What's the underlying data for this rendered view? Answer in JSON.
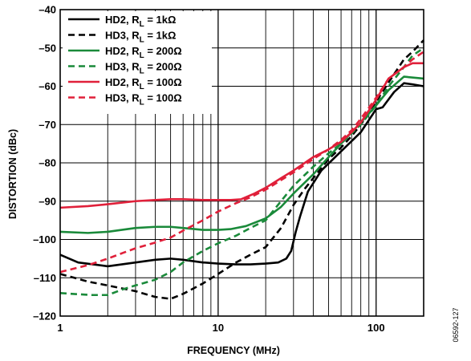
{
  "chart_data": {
    "type": "line",
    "title": "",
    "xlabel": "FREQUENCY (MHz)",
    "ylabel": "DISTORTION (dBc)",
    "x_scale": "log",
    "xlim": [
      1,
      200
    ],
    "ylim": [
      -120,
      -40
    ],
    "x_tick_labels": [
      {
        "value": 1,
        "label": "1"
      },
      {
        "value": 10,
        "label": "10"
      },
      {
        "value": 100,
        "label": "100"
      }
    ],
    "y_ticks": [
      -40,
      -50,
      -60,
      -70,
      -80,
      -90,
      -100,
      -110,
      -120
    ],
    "y_tick_labels": [
      "–40",
      "–50",
      "–60",
      "–70",
      "–80",
      "–90",
      "–100",
      "–110",
      "–120"
    ],
    "grid": true,
    "legend_position": "top-left",
    "figure_id": "06592-127",
    "series": [
      {
        "name_main": "HD2, R",
        "name_sub": "L",
        "name_rest": " = 1kΩ",
        "color": "#000000",
        "dash": false,
        "x": [
          1,
          1.3,
          2,
          3,
          4,
          5,
          6,
          8,
          10,
          13,
          16,
          20,
          24,
          27,
          29,
          31,
          33,
          37,
          45,
          60,
          80,
          100,
          110,
          130,
          150,
          170,
          200
        ],
        "y": [
          -104,
          -106,
          -107,
          -106,
          -105.3,
          -105,
          -105.3,
          -106,
          -106.3,
          -106.5,
          -106.5,
          -106.3,
          -106,
          -105,
          -103,
          -98,
          -94,
          -87.5,
          -82,
          -77,
          -72,
          -66,
          -65.5,
          -61.5,
          -59.2,
          -59.5,
          -60
        ]
      },
      {
        "name_main": "HD3, R",
        "name_sub": "L",
        "name_rest": " = 1kΩ",
        "color": "#000000",
        "dash": true,
        "x": [
          1,
          1.5,
          2,
          3,
          4,
          5,
          6,
          8,
          10,
          13,
          16,
          20,
          25,
          30,
          35,
          40,
          50,
          60,
          70,
          80,
          100,
          120,
          150,
          170,
          200
        ],
        "y": [
          -109,
          -111,
          -112,
          -113.5,
          -115,
          -115.5,
          -114.2,
          -111.5,
          -109,
          -106,
          -104,
          -102,
          -97,
          -91,
          -87,
          -84,
          -79,
          -76,
          -73,
          -70,
          -64,
          -59,
          -53,
          -51,
          -48
        ]
      },
      {
        "name_main": "HD2, R",
        "name_sub": "L",
        "name_rest": " = 200Ω",
        "color": "#1a8a3a",
        "dash": false,
        "x": [
          1,
          1.5,
          2,
          3,
          4,
          5,
          6,
          8,
          10,
          12,
          15,
          20,
          25,
          30,
          40,
          50,
          60,
          70,
          80,
          100,
          120,
          150,
          200
        ],
        "y": [
          -98,
          -98.3,
          -98,
          -97,
          -96.7,
          -96.7,
          -97,
          -97.5,
          -97.5,
          -97.3,
          -96.5,
          -94.5,
          -91.5,
          -88,
          -83,
          -78.5,
          -75,
          -72,
          -69.5,
          -65,
          -61,
          -57.5,
          -58
        ]
      },
      {
        "name_main": "HD3, R",
        "name_sub": "L",
        "name_rest": " = 200Ω",
        "color": "#1a8a3a",
        "dash": true,
        "x": [
          1,
          1.3,
          1.6,
          2,
          2.5,
          3,
          4,
          5,
          6,
          8,
          10,
          13,
          16,
          20,
          25,
          30,
          40,
          50,
          60,
          80,
          100,
          120,
          150,
          170,
          200
        ],
        "y": [
          -114,
          -114.3,
          -114.5,
          -114.5,
          -113,
          -112,
          -110.5,
          -108.5,
          -106,
          -103,
          -101,
          -99,
          -97,
          -95,
          -90,
          -86,
          -81,
          -77.5,
          -75,
          -70,
          -65,
          -60,
          -55,
          -52,
          -50
        ]
      },
      {
        "name_main": "HD2, R",
        "name_sub": "L",
        "name_rest": " = 100Ω",
        "color": "#e0203a",
        "dash": false,
        "x": [
          1,
          1.5,
          2,
          3,
          4,
          5,
          6,
          8,
          10,
          12,
          14,
          17,
          20,
          25,
          30,
          40,
          50,
          60,
          70,
          80,
          100,
          120,
          150,
          170,
          200
        ],
        "y": [
          -91.7,
          -91.3,
          -90.8,
          -90,
          -89.7,
          -89.5,
          -89.5,
          -89.7,
          -89.7,
          -89.7,
          -89.5,
          -88,
          -86.5,
          -84,
          -82,
          -78.5,
          -76.5,
          -74.5,
          -72,
          -69.5,
          -63.5,
          -58,
          -55,
          -54,
          -54
        ]
      },
      {
        "name_main": "HD3, R",
        "name_sub": "L",
        "name_rest": " = 100Ω",
        "color": "#e0203a",
        "dash": true,
        "x": [
          1,
          1.5,
          2,
          2.5,
          3,
          4,
          5,
          6,
          8,
          10,
          13,
          16,
          20,
          25,
          30,
          40,
          50,
          60,
          70,
          80,
          100,
          120,
          150,
          170,
          200
        ],
        "y": [
          -108.5,
          -106.7,
          -105,
          -103.5,
          -102.3,
          -100.8,
          -99.5,
          -97.7,
          -95,
          -92.7,
          -90.5,
          -89,
          -87,
          -84.5,
          -82.5,
          -79,
          -76.5,
          -74,
          -71.5,
          -68.5,
          -63,
          -58,
          -55,
          -53,
          -51
        ]
      }
    ]
  }
}
